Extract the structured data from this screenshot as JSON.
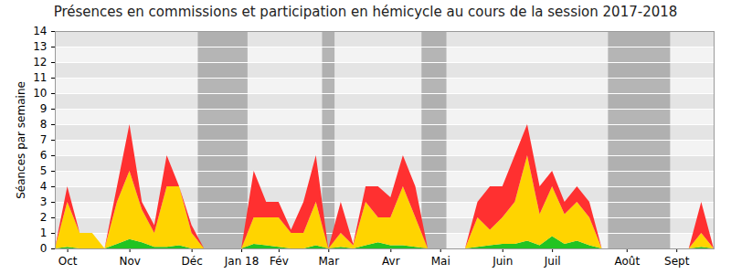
{
  "chart_data": {
    "type": "area",
    "title": "Présences en commissions et participation en hémicycle au cours de la session 2017-2018",
    "y_label": "Séances par semaine",
    "stacked": true,
    "grid": true,
    "categories": [
      null,
      "Oct",
      null,
      null,
      null,
      null,
      "Nov",
      null,
      null,
      null,
      null,
      "Déc",
      null,
      null,
      null,
      "Jan 18",
      null,
      null,
      "Fév",
      null,
      null,
      null,
      "Mar",
      null,
      null,
      null,
      null,
      "Avr",
      null,
      null,
      null,
      "Mai",
      null,
      null,
      null,
      null,
      "Juin",
      null,
      null,
      null,
      "Juil",
      null,
      null,
      null,
      null,
      null,
      "Août",
      null,
      null,
      null,
      "Sept",
      null,
      null,
      null
    ],
    "series": [
      {
        "color": "#22c422",
        "values": [
          0,
          0.1,
          0,
          0,
          0,
          0.3,
          0.6,
          0.4,
          0.1,
          0.1,
          0.2,
          0,
          0,
          0,
          0,
          0,
          0.3,
          0.2,
          0.1,
          0,
          0,
          0.2,
          0,
          0.1,
          0,
          0.2,
          0.4,
          0.2,
          0.2,
          0.1,
          0,
          0,
          0,
          0,
          0.1,
          0.2,
          0.3,
          0.3,
          0.5,
          0.2,
          0.8,
          0.3,
          0.5,
          0.2,
          0,
          0,
          0,
          0,
          0,
          0,
          0,
          0,
          0.1,
          0
        ]
      },
      {
        "color": "#ffd400",
        "values": [
          0,
          2.9,
          1,
          1,
          0,
          2.7,
          4.4,
          2.1,
          0.9,
          3.9,
          3.8,
          1,
          0,
          0,
          0,
          0,
          1.7,
          1.8,
          1.9,
          1,
          1,
          2.8,
          0,
          0.9,
          0.2,
          2.8,
          1.6,
          1.8,
          3.8,
          1.9,
          0,
          0,
          0,
          0,
          1.9,
          1,
          1.7,
          2.7,
          5.5,
          2,
          3.2,
          1.9,
          2.5,
          1.8,
          0,
          0,
          0,
          0,
          0,
          0,
          0,
          0,
          0.9,
          0
        ]
      },
      {
        "color": "#ff3030",
        "values": [
          0,
          1,
          0,
          0,
          0,
          1,
          3,
          0.5,
          0.5,
          2,
          0,
          0.5,
          0,
          0,
          0,
          0,
          3,
          1,
          1,
          0.2,
          2,
          3,
          0,
          2,
          0.1,
          1,
          2,
          1.3,
          2,
          2,
          0,
          0,
          0,
          0,
          1,
          2.8,
          2,
          3,
          2,
          1.8,
          1,
          0.8,
          1,
          1,
          0,
          0,
          0,
          0,
          0,
          0,
          0,
          0,
          2,
          0
        ]
      }
    ],
    "periods": [
      {
        "from": 12,
        "to": 15
      },
      {
        "from": 22,
        "to": 22
      },
      {
        "from": 30,
        "to": 31
      },
      {
        "from": 45,
        "to": 49
      }
    ],
    "ylim": [
      0,
      14
    ],
    "yticks": [
      0,
      1,
      2,
      3,
      4,
      5,
      6,
      7,
      8,
      9,
      10,
      11,
      12,
      13,
      14
    ]
  }
}
